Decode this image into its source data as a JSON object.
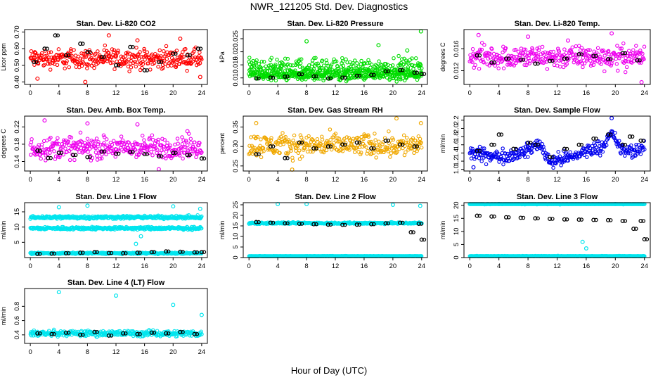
{
  "figure": {
    "title": "NWR_121205  Std. Dev. Diagnostics",
    "xlabel": "Hour of Day (UTC)"
  },
  "chart_data": [
    {
      "id": "co2",
      "type": "scatter",
      "title": "Stan. Dev. Li-820 CO2",
      "ylabel": "Licor ppm",
      "color": "#ff0000",
      "xlim": [
        -0.8,
        24.8
      ],
      "ylim": [
        0.385,
        0.715
      ],
      "xticks": [
        0,
        4,
        8,
        12,
        16,
        20,
        24
      ],
      "yticks": [
        0.4,
        0.5,
        0.6,
        0.7
      ],
      "ytick_labels": [
        "0.40",
        "0.50",
        "0.60",
        "0.70"
      ],
      "cloud_bands": [
        {
          "y": 0.54,
          "spread": 0.05
        }
      ],
      "overlay": [
        {
          "x": 0.5,
          "y": 0.52
        },
        {
          "x": 2,
          "y": 0.6
        },
        {
          "x": 3.5,
          "y": 0.68
        },
        {
          "x": 5,
          "y": 0.56
        },
        {
          "x": 7,
          "y": 0.63
        },
        {
          "x": 8,
          "y": 0.58
        },
        {
          "x": 10,
          "y": 0.55
        },
        {
          "x": 12,
          "y": 0.5
        },
        {
          "x": 14,
          "y": 0.61
        },
        {
          "x": 16,
          "y": 0.47
        },
        {
          "x": 18,
          "y": 0.52
        },
        {
          "x": 20,
          "y": 0.57
        },
        {
          "x": 22,
          "y": 0.56
        },
        {
          "x": 23.5,
          "y": 0.6
        }
      ],
      "outliers": [
        {
          "x": 1,
          "y": 0.42
        },
        {
          "x": 7.7,
          "y": 0.4
        },
        {
          "x": 11,
          "y": 0.68
        },
        {
          "x": 15,
          "y": 0.65
        },
        {
          "x": 21,
          "y": 0.66
        },
        {
          "x": 23.8,
          "y": 0.43
        }
      ]
    },
    {
      "id": "pressure",
      "type": "scatter",
      "title": "Stan. Dev. Li-820 Pressure",
      "ylabel": "kPa",
      "color": "#00dd00",
      "xlim": [
        -0.8,
        24.8
      ],
      "ylim": [
        0.0075,
        0.0285
      ],
      "xticks": [
        0,
        4,
        8,
        12,
        16,
        20,
        24
      ],
      "yticks": [
        0.01,
        0.015,
        0.02,
        0.025
      ],
      "ytick_labels": [
        "0.010",
        "0.015",
        "0.020",
        "0.025"
      ],
      "cloud_bands": [
        {
          "y": 0.0112,
          "spread": 0.0018
        },
        {
          "y": 0.0135,
          "spread": 0.0035
        }
      ],
      "overlay": [
        {
          "x": 1,
          "y": 0.0098
        },
        {
          "x": 3,
          "y": 0.0101
        },
        {
          "x": 5,
          "y": 0.0105
        },
        {
          "x": 7,
          "y": 0.0114
        },
        {
          "x": 9,
          "y": 0.0106
        },
        {
          "x": 11,
          "y": 0.0098
        },
        {
          "x": 13,
          "y": 0.0101
        },
        {
          "x": 15,
          "y": 0.0108
        },
        {
          "x": 17,
          "y": 0.0112
        },
        {
          "x": 19,
          "y": 0.0125
        },
        {
          "x": 21,
          "y": 0.013
        },
        {
          "x": 23,
          "y": 0.012
        },
        {
          "x": 24,
          "y": 0.0115
        }
      ],
      "outliers": [
        {
          "x": 8,
          "y": 0.024
        },
        {
          "x": 18,
          "y": 0.0225
        },
        {
          "x": 22,
          "y": 0.0205
        },
        {
          "x": 23.9,
          "y": 0.0278
        }
      ]
    },
    {
      "id": "licortemp",
      "type": "scatter",
      "title": "Stan. Dev. Li-820 Temp.",
      "ylabel": "degrees C",
      "color": "#ee00ee",
      "xlim": [
        -0.8,
        24.8
      ],
      "ylim": [
        0.0095,
        0.0195
      ],
      "xticks": [
        0,
        4,
        8,
        12,
        16,
        20,
        24
      ],
      "yticks": [
        0.012,
        0.016
      ],
      "ytick_labels": [
        "0.012",
        "0.016"
      ],
      "cloud_bands": [
        {
          "y": 0.0145,
          "spread": 0.0018
        }
      ],
      "overlay": [
        {
          "x": 1,
          "y": 0.0148
        },
        {
          "x": 3,
          "y": 0.0135
        },
        {
          "x": 5,
          "y": 0.0142
        },
        {
          "x": 7,
          "y": 0.014
        },
        {
          "x": 9,
          "y": 0.0133
        },
        {
          "x": 11,
          "y": 0.0138
        },
        {
          "x": 13,
          "y": 0.0142
        },
        {
          "x": 15,
          "y": 0.015
        },
        {
          "x": 17,
          "y": 0.0147
        },
        {
          "x": 19,
          "y": 0.0141
        },
        {
          "x": 21,
          "y": 0.0152
        },
        {
          "x": 23,
          "y": 0.0139
        }
      ],
      "outliers": [
        {
          "x": 1.2,
          "y": 0.0185
        },
        {
          "x": 8,
          "y": 0.0182
        },
        {
          "x": 13.5,
          "y": 0.0175
        },
        {
          "x": 19.5,
          "y": 0.0188
        },
        {
          "x": 23.6,
          "y": 0.0099
        }
      ]
    },
    {
      "id": "ambbox",
      "type": "scatter",
      "title": "Stan. Dev. Amb. Box Temp.",
      "ylabel": "degrees C",
      "color": "#ee00ee",
      "xlim": [
        -0.8,
        24.8
      ],
      "ylim": [
        0.118,
        0.245
      ],
      "xticks": [
        0,
        4,
        8,
        12,
        16,
        20,
        24
      ],
      "yticks": [
        0.14,
        0.18,
        0.22
      ],
      "ytick_labels": [
        "0.14",
        "0.18",
        "0.22"
      ],
      "cloud_bands": [
        {
          "y": 0.172,
          "spread": 0.022
        }
      ],
      "overlay": [
        {
          "x": 1,
          "y": 0.165
        },
        {
          "x": 2.5,
          "y": 0.148
        },
        {
          "x": 4,
          "y": 0.16
        },
        {
          "x": 6,
          "y": 0.155
        },
        {
          "x": 8,
          "y": 0.15
        },
        {
          "x": 10,
          "y": 0.163
        },
        {
          "x": 12,
          "y": 0.158
        },
        {
          "x": 14,
          "y": 0.162
        },
        {
          "x": 16,
          "y": 0.157
        },
        {
          "x": 18,
          "y": 0.152
        },
        {
          "x": 20,
          "y": 0.16
        },
        {
          "x": 22,
          "y": 0.155
        },
        {
          "x": 24,
          "y": 0.147
        }
      ],
      "outliers": [
        {
          "x": 2,
          "y": 0.235
        },
        {
          "x": 8,
          "y": 0.228
        },
        {
          "x": 15,
          "y": 0.226
        },
        {
          "x": 18,
          "y": 0.122
        },
        {
          "x": 22,
          "y": 0.21
        }
      ]
    },
    {
      "id": "gasrh",
      "type": "scatter",
      "title": "Stan. Dev. Gas Stream RH",
      "ylabel": "percent",
      "color": "#f0a800",
      "xlim": [
        -0.8,
        24.8
      ],
      "ylim": [
        0.237,
        0.378
      ],
      "xticks": [
        0,
        4,
        8,
        12,
        16,
        20,
        24
      ],
      "yticks": [
        0.25,
        0.3,
        0.35
      ],
      "ytick_labels": [
        "0.25",
        "0.30",
        "0.35"
      ],
      "cloud_bands": [
        {
          "y": 0.303,
          "spread": 0.025
        }
      ],
      "overlay": [
        {
          "x": 1,
          "y": 0.28
        },
        {
          "x": 3,
          "y": 0.3
        },
        {
          "x": 5,
          "y": 0.27
        },
        {
          "x": 7,
          "y": 0.31
        },
        {
          "x": 9,
          "y": 0.295
        },
        {
          "x": 11,
          "y": 0.3
        },
        {
          "x": 13,
          "y": 0.305
        },
        {
          "x": 15,
          "y": 0.31
        },
        {
          "x": 17,
          "y": 0.295
        },
        {
          "x": 19,
          "y": 0.315
        },
        {
          "x": 21,
          "y": 0.305
        },
        {
          "x": 23,
          "y": 0.3
        }
      ],
      "outliers": [
        {
          "x": 1,
          "y": 0.36
        },
        {
          "x": 20.5,
          "y": 0.372
        },
        {
          "x": 23.9,
          "y": 0.36
        },
        {
          "x": 6,
          "y": 0.24
        }
      ]
    },
    {
      "id": "sampleflow",
      "type": "scatter",
      "title": "Stan. Dev. Sample Flow",
      "ylabel": "ml/min",
      "color": "#0000ee",
      "xlim": [
        -0.8,
        24.8
      ],
      "ylim": [
        0.96,
        2.3
      ],
      "xticks": [
        0,
        4,
        8,
        12,
        16,
        20,
        24
      ],
      "yticks": [
        1.0,
        1.2,
        1.4,
        1.6,
        1.8,
        2.0,
        2.2
      ],
      "ytick_labels": [
        "1.0",
        "1.2",
        "1.4",
        "1.6",
        "1.8",
        "2.0",
        "2.2"
      ],
      "cloud_bands": [
        {
          "y": 1.35,
          "spread": 0.14
        }
      ],
      "trend": [
        [
          0,
          1.4
        ],
        [
          4,
          1.3
        ],
        [
          8,
          1.45
        ],
        [
          9.5,
          1.65
        ],
        [
          11,
          1.2
        ],
        [
          14,
          1.3
        ],
        [
          16,
          1.45
        ],
        [
          18,
          1.55
        ],
        [
          19.5,
          1.85
        ],
        [
          21,
          1.45
        ],
        [
          23,
          1.45
        ],
        [
          24,
          1.5
        ]
      ],
      "overlay": [
        {
          "x": 1,
          "y": 1.45
        },
        {
          "x": 3,
          "y": 1.6
        },
        {
          "x": 4,
          "y": 1.85
        },
        {
          "x": 6,
          "y": 1.5
        },
        {
          "x": 8,
          "y": 1.65
        },
        {
          "x": 9,
          "y": 1.6
        },
        {
          "x": 11,
          "y": 1.3
        },
        {
          "x": 13,
          "y": 1.5
        },
        {
          "x": 15,
          "y": 1.6
        },
        {
          "x": 17,
          "y": 1.75
        },
        {
          "x": 19,
          "y": 1.85
        },
        {
          "x": 21,
          "y": 1.6
        },
        {
          "x": 22,
          "y": 1.8
        },
        {
          "x": 23.5,
          "y": 1.7
        }
      ],
      "outliers": [
        {
          "x": 19.5,
          "y": 2.25
        },
        {
          "x": 0.5,
          "y": 1.05
        }
      ]
    },
    {
      "id": "line1",
      "type": "scatter",
      "title": "Stan. Dev. Line 1 Flow",
      "ylabel": "ml/min",
      "color": "#00e5ee",
      "xlim": [
        -0.8,
        24.8
      ],
      "ylim": [
        0,
        18
      ],
      "xticks": [
        0,
        4,
        8,
        12,
        16,
        20,
        24
      ],
      "yticks": [
        5,
        10,
        15
      ],
      "ytick_labels": [
        "5",
        "10",
        "15"
      ],
      "cloud_bands": [
        {
          "y": 13.2,
          "spread": 0.45
        },
        {
          "y": 9.6,
          "spread": 0.4
        },
        {
          "y": 1.4,
          "spread": 0.2
        }
      ],
      "overlay": [
        {
          "x": 1,
          "y": 1.2
        },
        {
          "x": 3,
          "y": 1.3
        },
        {
          "x": 5,
          "y": 1.4
        },
        {
          "x": 7,
          "y": 1.6
        },
        {
          "x": 9,
          "y": 1.8
        },
        {
          "x": 11,
          "y": 1.5
        },
        {
          "x": 13,
          "y": 1.4
        },
        {
          "x": 15,
          "y": 1.6
        },
        {
          "x": 17,
          "y": 1.8
        },
        {
          "x": 19,
          "y": 2.0
        },
        {
          "x": 21,
          "y": 1.9
        },
        {
          "x": 23,
          "y": 1.7
        },
        {
          "x": 24,
          "y": 1.8
        }
      ],
      "outliers": [
        {
          "x": 4,
          "y": 16.5
        },
        {
          "x": 8,
          "y": 17
        },
        {
          "x": 14.8,
          "y": 4.5
        },
        {
          "x": 15.5,
          "y": 7
        },
        {
          "x": 20,
          "y": 16.8
        },
        {
          "x": 23.8,
          "y": 16
        }
      ]
    },
    {
      "id": "line2",
      "type": "scatter",
      "title": "Stan. Dev. Line 2 Flow",
      "ylabel": "ml/min",
      "color": "#00e5ee",
      "xlim": [
        -0.8,
        24.8
      ],
      "ylim": [
        0,
        26
      ],
      "xticks": [
        0,
        4,
        8,
        12,
        16,
        20,
        24
      ],
      "yticks": [
        0,
        5,
        10,
        15,
        20,
        25
      ],
      "ytick_labels": [
        "0",
        "5",
        "10",
        "15",
        "20",
        "25"
      ],
      "cloud_bands": [
        {
          "y": 16.3,
          "spread": 0.35
        },
        {
          "y": 0.6,
          "spread": 0.15
        }
      ],
      "overlay": [
        {
          "x": 1,
          "y": 16.8
        },
        {
          "x": 3,
          "y": 16.5
        },
        {
          "x": 5,
          "y": 16.2
        },
        {
          "x": 7,
          "y": 16.0
        },
        {
          "x": 9,
          "y": 15.8
        },
        {
          "x": 11,
          "y": 15.6
        },
        {
          "x": 13,
          "y": 15.5
        },
        {
          "x": 15,
          "y": 15.6
        },
        {
          "x": 17,
          "y": 15.8
        },
        {
          "x": 19,
          "y": 16.2
        },
        {
          "x": 21,
          "y": 16.5
        },
        {
          "x": 22.5,
          "y": 12
        },
        {
          "x": 23.6,
          "y": 16
        },
        {
          "x": 24,
          "y": 8.5
        }
      ],
      "outliers": [
        {
          "x": 4,
          "y": 25.5
        },
        {
          "x": 8,
          "y": 25.5
        },
        {
          "x": 20,
          "y": 25
        },
        {
          "x": 23.8,
          "y": 24.5
        }
      ]
    },
    {
      "id": "line3",
      "type": "scatter",
      "title": "Stan. Dev. Line 3 Flow",
      "ylabel": "ml/min",
      "color": "#00e5ee",
      "xlim": [
        -0.8,
        24.8
      ],
      "ylim": [
        0,
        21
      ],
      "xticks": [
        0,
        4,
        8,
        12,
        16,
        20,
        24
      ],
      "yticks": [
        0,
        5,
        10,
        15,
        20
      ],
      "ytick_labels": [
        "0",
        "5",
        "10",
        "15",
        "20"
      ],
      "cloud_bands": [
        {
          "y": 20.8,
          "spread": 0.35
        },
        {
          "y": 0.5,
          "spread": 0.12
        }
      ],
      "overlay": [
        {
          "x": 1,
          "y": 16
        },
        {
          "x": 3,
          "y": 15.7
        },
        {
          "x": 5,
          "y": 15.4
        },
        {
          "x": 7,
          "y": 15.2
        },
        {
          "x": 9,
          "y": 15
        },
        {
          "x": 11,
          "y": 14.8
        },
        {
          "x": 13,
          "y": 14.6
        },
        {
          "x": 15,
          "y": 14.5
        },
        {
          "x": 17,
          "y": 14.4
        },
        {
          "x": 19,
          "y": 14.3
        },
        {
          "x": 21,
          "y": 14
        },
        {
          "x": 22.5,
          "y": 11
        },
        {
          "x": 23.5,
          "y": 14
        },
        {
          "x": 24,
          "y": 7
        }
      ],
      "outliers": [
        {
          "x": 4,
          "y": 20.8
        },
        {
          "x": 15.5,
          "y": 6
        },
        {
          "x": 16,
          "y": 3.5
        },
        {
          "x": 20,
          "y": 20.8
        }
      ]
    },
    {
      "id": "line4",
      "type": "scatter",
      "title": "Stan. Dev. Line 4 (LT) Flow",
      "ylabel": "ml/min",
      "color": "#00e5ee",
      "xlim": [
        -0.8,
        24.8
      ],
      "ylim": [
        0.28,
        1.05
      ],
      "xticks": [
        0,
        4,
        8,
        12,
        16,
        20,
        24
      ],
      "yticks": [
        0.4,
        0.6,
        0.8
      ],
      "ytick_labels": [
        "0.4",
        "0.6",
        "0.8"
      ],
      "cloud_bands": [
        {
          "y": 0.42,
          "spread": 0.035
        }
      ],
      "overlay": [
        {
          "x": 1,
          "y": 0.42
        },
        {
          "x": 3,
          "y": 0.41
        },
        {
          "x": 5,
          "y": 0.43
        },
        {
          "x": 7,
          "y": 0.4
        },
        {
          "x": 9,
          "y": 0.44
        },
        {
          "x": 11,
          "y": 0.39
        },
        {
          "x": 13,
          "y": 0.42
        },
        {
          "x": 15,
          "y": 0.41
        },
        {
          "x": 17,
          "y": 0.43
        },
        {
          "x": 19,
          "y": 0.42
        },
        {
          "x": 21,
          "y": 0.44
        },
        {
          "x": 23,
          "y": 0.41
        }
      ],
      "outliers": [
        {
          "x": 4,
          "y": 1.0
        },
        {
          "x": 12,
          "y": 0.95
        },
        {
          "x": 20,
          "y": 0.82
        },
        {
          "x": 24,
          "y": 0.68
        }
      ]
    }
  ]
}
